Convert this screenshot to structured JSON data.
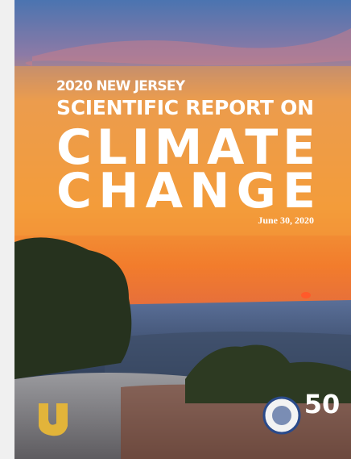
{
  "cover": {
    "kicker": "2020 NEW JERSEY",
    "title_line1": "SCIENTIFIC REPORT ON",
    "title_line2": "CLIMATE",
    "title_line3": "CHANGE",
    "date": "June 30, 2020",
    "anniversary_logo": "50"
  }
}
